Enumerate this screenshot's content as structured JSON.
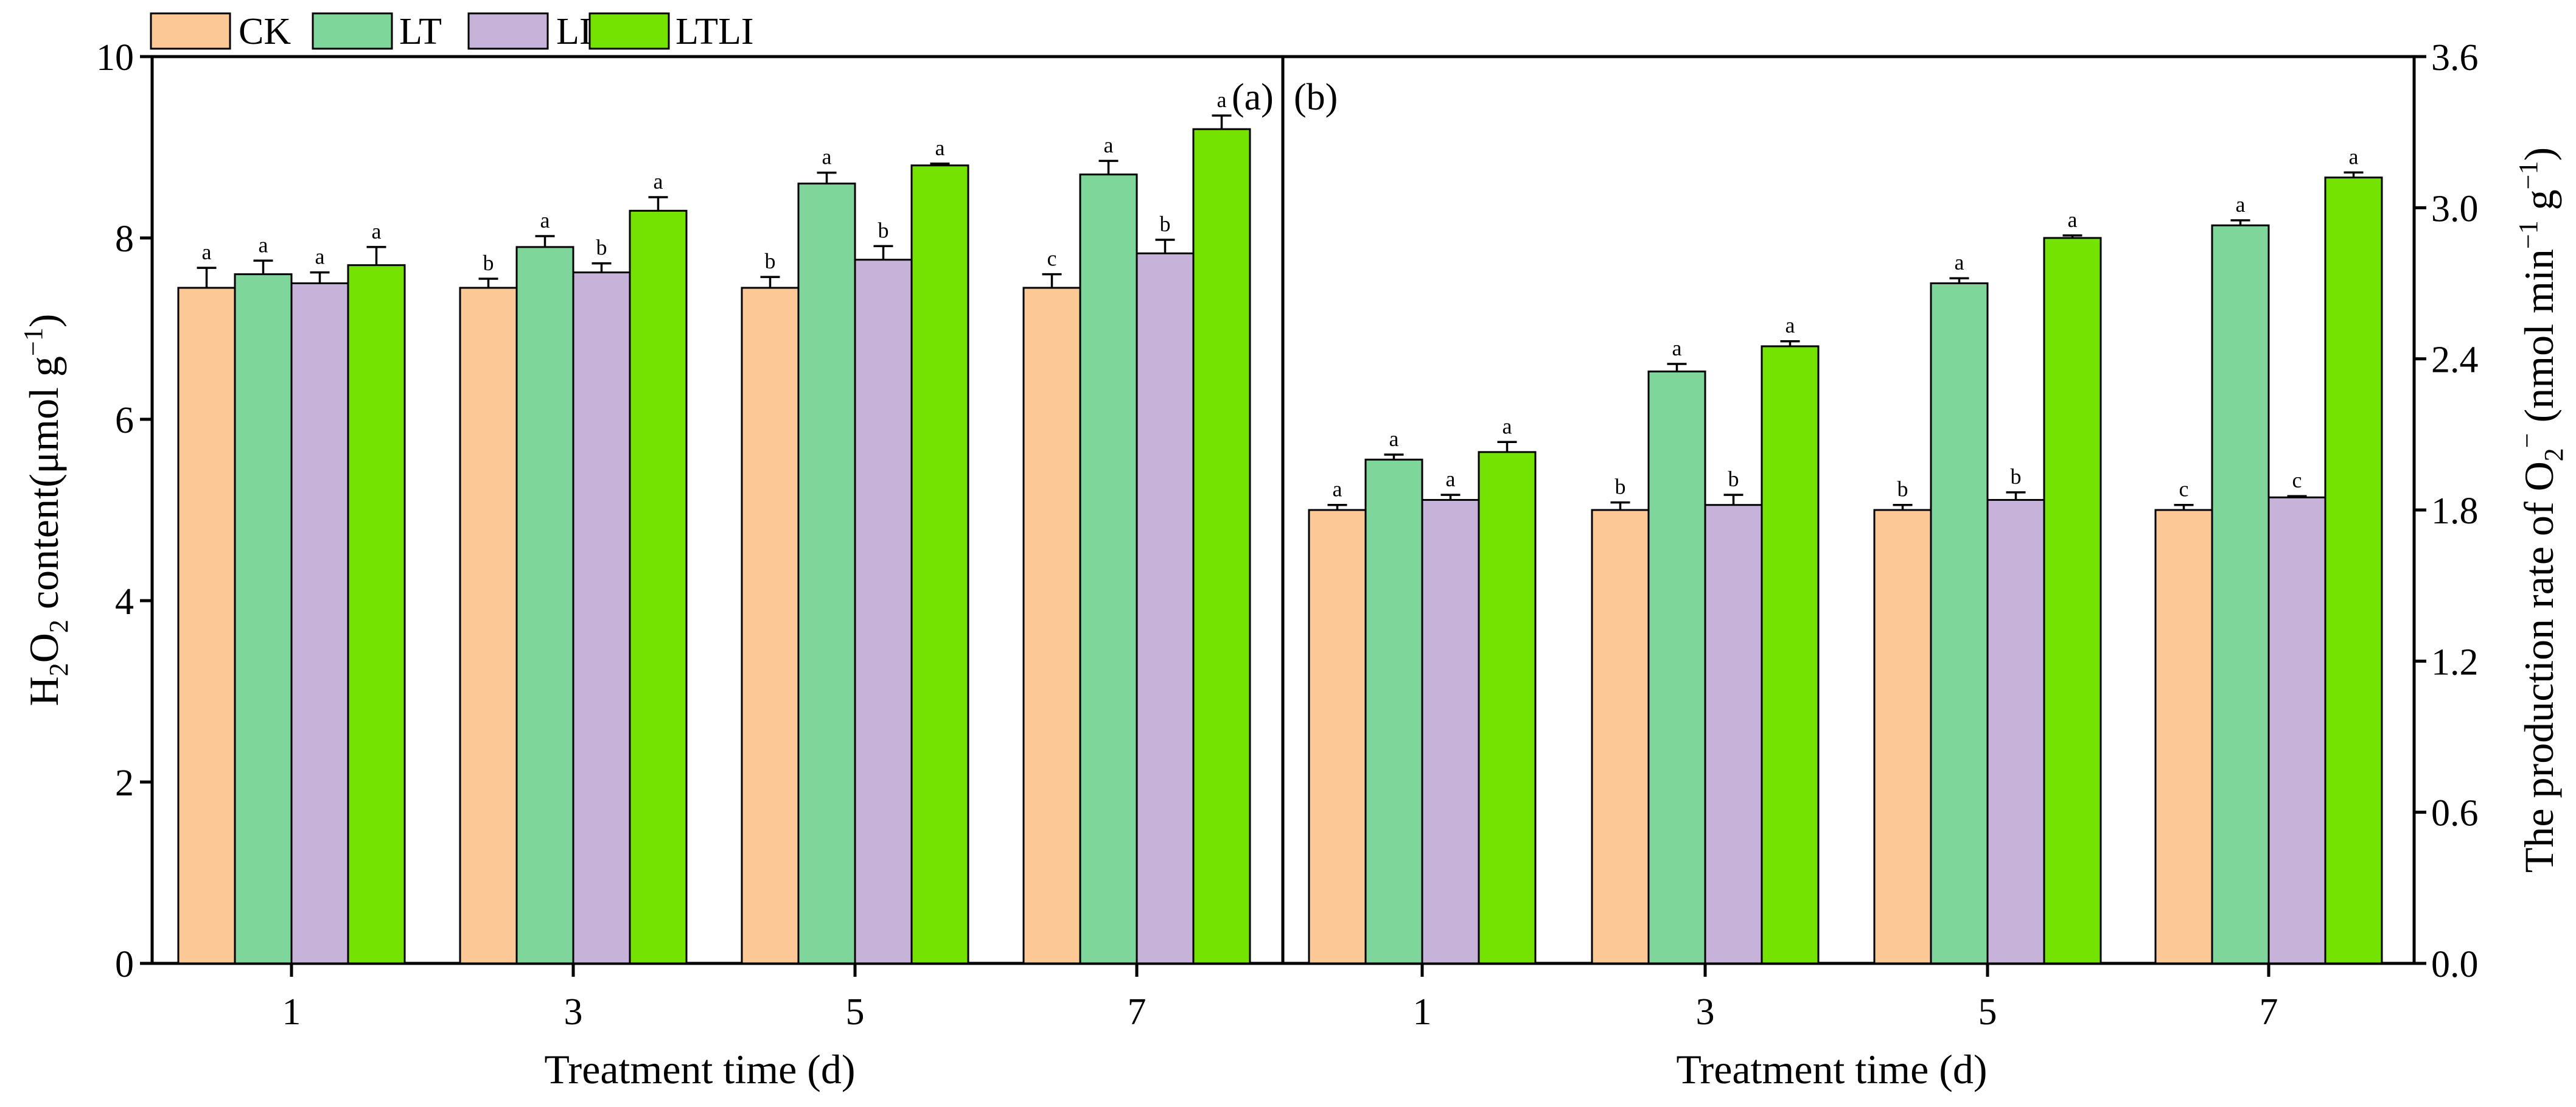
{
  "legend": [
    {
      "label": "CK",
      "color": "#FCC896"
    },
    {
      "label": "LT",
      "color": "#7ED69B"
    },
    {
      "label": "LI",
      "color": "#C7B2D9"
    },
    {
      "label": "LTLI",
      "color": "#74E301"
    }
  ],
  "chart_data": [
    {
      "type": "bar",
      "panel_tag": "(a)",
      "xlabel": "Treatment time (d)",
      "ylabel": "H2O2 content(μmol g−1)",
      "ylabel_parts": {
        "p1": "H",
        "s1": "2",
        "p2": "O",
        "s2": "2",
        "p3": " content(μmol  g",
        "sup": "−1",
        "p4": ")"
      },
      "categories": [
        "1",
        "3",
        "5",
        "7"
      ],
      "ylim": [
        0,
        10
      ],
      "yticks": [
        "0",
        "2",
        "4",
        "6",
        "8",
        "10"
      ],
      "y_axis_side": "left",
      "series": [
        {
          "name": "CK",
          "values": [
            7.45,
            7.45,
            7.45,
            7.45
          ],
          "errors": [
            0.22,
            0.1,
            0.12,
            0.15
          ],
          "labels": [
            "a",
            "b",
            "b",
            "c"
          ]
        },
        {
          "name": "LT",
          "values": [
            7.6,
            7.9,
            8.6,
            8.7
          ],
          "errors": [
            0.15,
            0.12,
            0.12,
            0.15
          ],
          "labels": [
            "a",
            "a",
            "a",
            "a"
          ]
        },
        {
          "name": "LI",
          "values": [
            7.5,
            7.62,
            7.76,
            7.83
          ],
          "errors": [
            0.12,
            0.1,
            0.15,
            0.15
          ],
          "labels": [
            "a",
            "b",
            "b",
            "b"
          ]
        },
        {
          "name": "LTLI",
          "values": [
            7.7,
            8.3,
            8.8,
            9.2
          ],
          "errors": [
            0.2,
            0.15,
            0.02,
            0.15
          ],
          "labels": [
            "a",
            "a",
            "a",
            "a"
          ]
        }
      ]
    },
    {
      "type": "bar",
      "panel_tag": "(b)",
      "xlabel": "Treatment time (d)",
      "ylabel": "The production rate of O2− (nmol min−1 g−1)",
      "ylabel_parts": {
        "p1": "The production rate of O",
        "s1": "2",
        "sup1": "−",
        "p2": "  (nmol min",
        "sup2": "−1",
        "p3": " g",
        "sup3": "−1",
        "p4": ")"
      },
      "categories": [
        "1",
        "3",
        "5",
        "7"
      ],
      "ylim": [
        0,
        3.6
      ],
      "yticks": [
        "0.0",
        "0.6",
        "1.2",
        "1.8",
        "2.4",
        "3.0",
        "3.6"
      ],
      "y_axis_side": "right",
      "series": [
        {
          "name": "CK",
          "values": [
            1.8,
            1.8,
            1.8,
            1.8
          ],
          "errors": [
            0.02,
            0.03,
            0.02,
            0.02
          ],
          "labels": [
            "a",
            "b",
            "b",
            "c"
          ]
        },
        {
          "name": "LT",
          "values": [
            2.0,
            2.35,
            2.7,
            2.93
          ],
          "errors": [
            0.02,
            0.03,
            0.02,
            0.02
          ],
          "labels": [
            "a",
            "a",
            "a",
            "a"
          ]
        },
        {
          "name": "LI",
          "values": [
            1.84,
            1.82,
            1.84,
            1.85
          ],
          "errors": [
            0.02,
            0.04,
            0.03,
            0.005
          ],
          "labels": [
            "a",
            "b",
            "b",
            "c"
          ]
        },
        {
          "name": "LTLI",
          "values": [
            2.03,
            2.45,
            2.88,
            3.12
          ],
          "errors": [
            0.04,
            0.02,
            0.01,
            0.02
          ],
          "labels": [
            "a",
            "a",
            "a",
            "a"
          ]
        }
      ]
    }
  ]
}
